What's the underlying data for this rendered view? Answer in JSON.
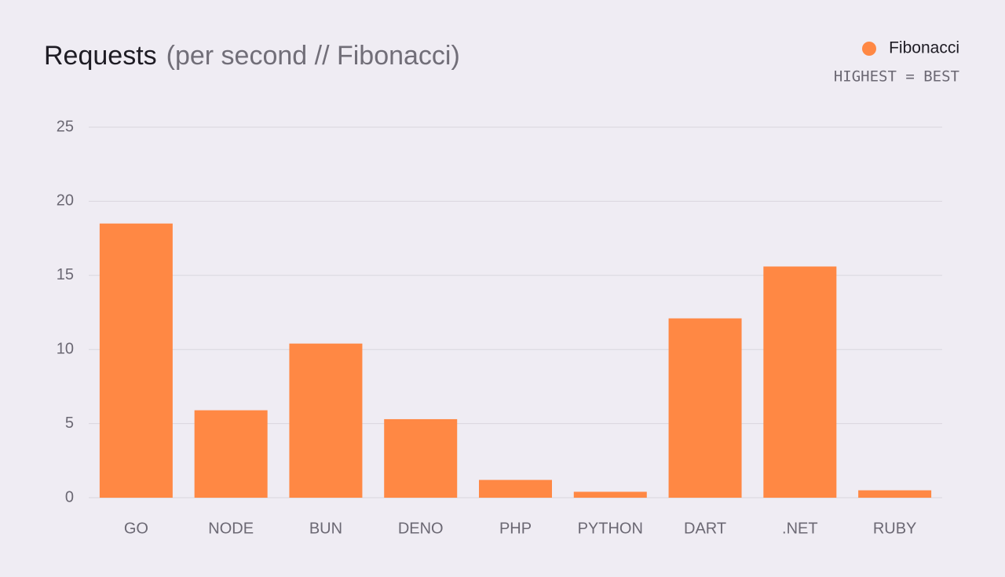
{
  "chart_data": {
    "type": "bar",
    "title": "Requests",
    "subtitle": "(per second // Fibonacci)",
    "note": "HIGHEST = BEST",
    "categories": [
      "GO",
      "NODE",
      "BUN",
      "DENO",
      "PHP",
      "PYTHON",
      "DART",
      ".NET",
      "RUBY"
    ],
    "series": [
      {
        "name": "Fibonacci",
        "color": "#ff8844",
        "values": [
          18.5,
          5.9,
          10.4,
          5.3,
          1.2,
          0.4,
          12.1,
          15.6,
          0.5
        ]
      }
    ],
    "ylim": [
      0,
      25
    ],
    "yticks": [
      0,
      5,
      10,
      15,
      20,
      25
    ],
    "grid": true,
    "legend": "top-right"
  }
}
